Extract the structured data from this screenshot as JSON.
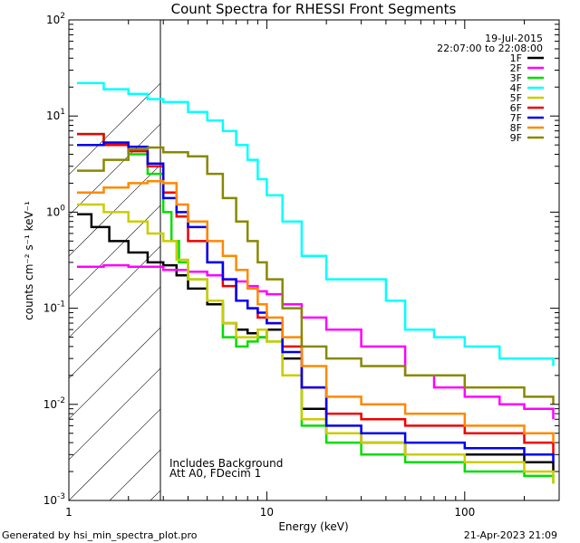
{
  "chart_data": {
    "type": "line",
    "title": "Count Spectra for RHESSI Front Segments",
    "xlabel": "Energy (keV)",
    "ylabel": "counts cm⁻² s⁻¹ keV⁻¹",
    "xscale": "log",
    "yscale": "log",
    "xlim": [
      1,
      300
    ],
    "ylim": [
      0.001,
      100
    ],
    "x_ticks": [
      {
        "value": 1,
        "label": "1"
      },
      {
        "value": 10,
        "label": "10"
      },
      {
        "value": 100,
        "label": "100"
      }
    ],
    "y_ticks": [
      {
        "exp": 2,
        "label_base": "10",
        "label_exp": "2"
      },
      {
        "exp": 1,
        "label_base": "10",
        "label_exp": "1"
      },
      {
        "exp": 0,
        "label_base": "10",
        "label_exp": "0"
      },
      {
        "exp": -1,
        "label_base": "10",
        "label_exp": "-1"
      },
      {
        "exp": -2,
        "label_base": "10",
        "label_exp": "-2"
      },
      {
        "exp": -3,
        "label_base": "10",
        "label_exp": "-3"
      }
    ],
    "shaded_region": {
      "x_range": [
        1,
        3
      ],
      "style": "hatched"
    },
    "date": "19-Jul-2015",
    "time_range": "22:07:00 to 22:08:00",
    "annotations": [
      "Includes Background",
      "Att A0, FDecim 1"
    ],
    "series": [
      {
        "name": "1F",
        "color": "#000000",
        "x": [
          1.1,
          1.3,
          1.6,
          2,
          2.5,
          3,
          3.5,
          4,
          5,
          6,
          7,
          8,
          9,
          10,
          12,
          15,
          20,
          30,
          50,
          100,
          200,
          280
        ],
        "y": [
          0.95,
          0.7,
          0.5,
          0.38,
          0.3,
          0.28,
          0.22,
          0.16,
          0.11,
          0.07,
          0.06,
          0.055,
          0.05,
          0.06,
          0.03,
          0.009,
          0.005,
          0.004,
          0.003,
          0.003,
          0.0025,
          0.002
        ]
      },
      {
        "name": "2F",
        "color": "#ff00ff",
        "x": [
          1.1,
          1.5,
          2,
          3,
          4,
          5,
          6,
          7,
          8,
          9,
          10,
          12,
          15,
          20,
          30,
          50,
          70,
          100,
          150,
          200,
          280
        ],
        "y": [
          0.27,
          0.28,
          0.27,
          0.25,
          0.24,
          0.22,
          0.2,
          0.19,
          0.17,
          0.15,
          0.14,
          0.11,
          0.08,
          0.06,
          0.04,
          0.02,
          0.015,
          0.012,
          0.01,
          0.009,
          0.007
        ]
      },
      {
        "name": "3F",
        "color": "#00dd00",
        "x": [
          1.1,
          1.5,
          2,
          2.5,
          3,
          3.3,
          3.6,
          4,
          5,
          6,
          7,
          8,
          9,
          10,
          12,
          15,
          20,
          30,
          50,
          100,
          200,
          280
        ],
        "y": [
          6.5,
          5.2,
          4,
          2.5,
          1,
          0.5,
          0.3,
          0.2,
          0.12,
          0.05,
          0.04,
          0.045,
          0.05,
          0.045,
          0.02,
          0.006,
          0.004,
          0.003,
          0.0025,
          0.002,
          0.0018,
          0.0015
        ]
      },
      {
        "name": "4F",
        "color": "#00ffff",
        "x": [
          1.1,
          1.5,
          2,
          2.5,
          3,
          4,
          5,
          6,
          7,
          8,
          9,
          10,
          12,
          15,
          20,
          30,
          40,
          50,
          70,
          100,
          150,
          200,
          280
        ],
        "y": [
          22,
          19,
          17,
          15,
          14,
          11,
          9,
          7,
          5,
          3.5,
          2.2,
          1.5,
          0.8,
          0.35,
          0.2,
          0.2,
          0.12,
          0.06,
          0.05,
          0.04,
          0.03,
          0.03,
          0.025
        ]
      },
      {
        "name": "5F",
        "color": "#cccc00",
        "x": [
          1.1,
          1.5,
          2,
          2.5,
          3,
          3.5,
          4,
          5,
          6,
          7,
          8,
          9,
          10,
          12,
          15,
          20,
          30,
          50,
          100,
          200,
          280
        ],
        "y": [
          1.2,
          1.0,
          0.8,
          0.6,
          0.5,
          0.32,
          0.2,
          0.12,
          0.07,
          0.05,
          0.05,
          0.06,
          0.045,
          0.02,
          0.007,
          0.005,
          0.004,
          0.003,
          0.0025,
          0.002,
          0.0015
        ]
      },
      {
        "name": "6F",
        "color": "#ee0000",
        "x": [
          1.1,
          1.5,
          2,
          2.5,
          3,
          3.5,
          4,
          5,
          6,
          7,
          8,
          9,
          10,
          12,
          15,
          20,
          30,
          50,
          100,
          200,
          280
        ],
        "y": [
          6.5,
          5,
          4.3,
          3,
          1.6,
          0.9,
          0.5,
          0.3,
          0.17,
          0.12,
          0.1,
          0.08,
          0.07,
          0.04,
          0.015,
          0.008,
          0.007,
          0.006,
          0.005,
          0.004,
          0.003
        ]
      },
      {
        "name": "7F",
        "color": "#0000ee",
        "x": [
          1.1,
          1.5,
          2,
          2.5,
          3,
          3.5,
          4,
          5,
          6,
          7,
          8,
          9,
          10,
          12,
          15,
          20,
          30,
          50,
          100,
          200,
          280
        ],
        "y": [
          5,
          5.3,
          4.8,
          3.2,
          1.4,
          1.0,
          0.7,
          0.3,
          0.2,
          0.12,
          0.1,
          0.09,
          0.07,
          0.035,
          0.015,
          0.006,
          0.005,
          0.004,
          0.0035,
          0.003,
          0.0025
        ]
      },
      {
        "name": "8F",
        "color": "#ff8800",
        "x": [
          1.1,
          1.5,
          2,
          2.5,
          3,
          3.5,
          4,
          5,
          6,
          7,
          8,
          9,
          10,
          12,
          15,
          20,
          30,
          50,
          100,
          200,
          280
        ],
        "y": [
          1.6,
          1.8,
          2,
          2.1,
          2.0,
          1.2,
          0.8,
          0.5,
          0.35,
          0.25,
          0.16,
          0.11,
          0.08,
          0.05,
          0.025,
          0.012,
          0.01,
          0.008,
          0.006,
          0.005,
          0.004
        ]
      },
      {
        "name": "9F",
        "color": "#888800",
        "x": [
          1.1,
          1.5,
          2,
          2.5,
          3,
          4,
          5,
          6,
          7,
          8,
          9,
          10,
          12,
          15,
          20,
          30,
          50,
          100,
          200,
          280
        ],
        "y": [
          2.7,
          3.5,
          4.5,
          4.7,
          4.2,
          3.8,
          2.5,
          1.4,
          0.8,
          0.5,
          0.3,
          0.2,
          0.1,
          0.04,
          0.03,
          0.025,
          0.02,
          0.015,
          0.012,
          0.01
        ]
      }
    ]
  },
  "footer": {
    "generator": "Generated by hsi_min_spectra_plot.pro",
    "timestamp": "21-Apr-2023 21:09"
  }
}
